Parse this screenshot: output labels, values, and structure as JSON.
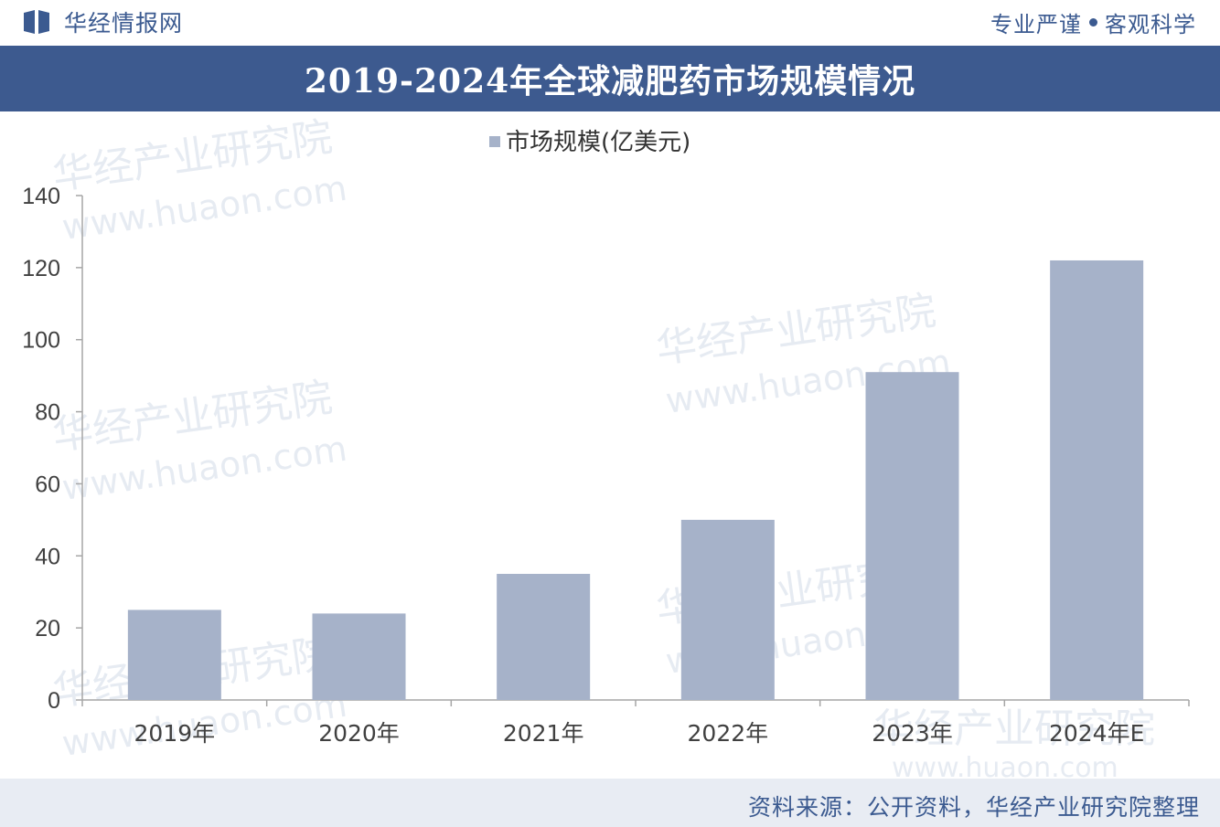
{
  "header": {
    "brand": "华经情报网",
    "slogan_left": "专业严谨",
    "slogan_right": "客观科学"
  },
  "title": "2019-2024年全球减肥药市场规模情况",
  "watermark": {
    "name": "华经产业研究院",
    "url": "www.huaon.com"
  },
  "footer": {
    "source": "资料来源：公开资料，华经产业研究院整理"
  },
  "colors": {
    "header_blue": "#3d5a8f",
    "bar": "#a6b2c9",
    "axis": "#a6a6a6",
    "footer_bg": "#e8ecf3"
  },
  "chart_data": {
    "type": "bar",
    "categories": [
      "2019年",
      "2020年",
      "2021年",
      "2022年",
      "2023年",
      "2024年E"
    ],
    "series": [
      {
        "name": "市场规模(亿美元)",
        "values": [
          25,
          24,
          35,
          50,
          91,
          122
        ]
      }
    ],
    "ylim": [
      0,
      140
    ],
    "yticks": [
      0,
      20,
      40,
      60,
      80,
      100,
      120,
      140
    ],
    "grid": false,
    "legend": "top-center"
  }
}
